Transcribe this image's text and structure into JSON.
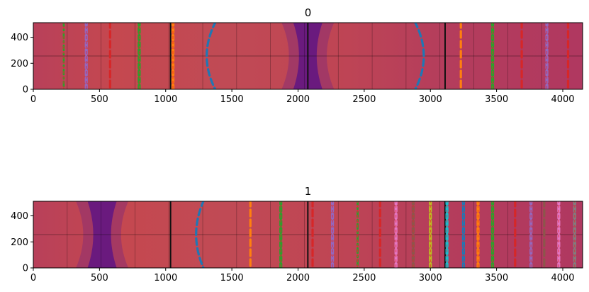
{
  "chart_data": [
    {
      "type": "heatmap",
      "title": "0",
      "xlabel": "",
      "ylabel": "",
      "xlim": [
        0,
        4150
      ],
      "ylim": [
        0,
        512
      ],
      "xticks": [
        0,
        500,
        1000,
        1500,
        2000,
        2500,
        3000,
        3500,
        4000
      ],
      "yticks": [
        0,
        200,
        400
      ],
      "grid_lines_x": [
        256,
        512,
        768,
        1024,
        1280,
        1536,
        1792,
        2048,
        2304,
        2560,
        2816,
        3072,
        3328,
        3584,
        3840
      ],
      "grid_lines_y": [
        256
      ],
      "black_lines_x": [
        1037,
        2074,
        3111
      ],
      "dark_band": {
        "x_center": 2074,
        "half_width_edge": 110,
        "half_width_center": 40
      },
      "curves": [
        {
          "x": 230,
          "color": "#2ca02c",
          "style": "dash-dot"
        },
        {
          "x": 400,
          "color": "#9467bd",
          "style": "chain"
        },
        {
          "x": 580,
          "color": "#d62728",
          "style": "dash"
        },
        {
          "x": 800,
          "color": "#2ca02c",
          "style": "chain"
        },
        {
          "x": 1055,
          "color": "#ff7f0e",
          "style": "chain"
        },
        {
          "x": 1380,
          "color": "#1f77b4",
          "style": "dash",
          "bulge": 70
        },
        {
          "x": 2880,
          "color": "#1f77b4",
          "style": "dash",
          "bulge": -70
        },
        {
          "x": 3230,
          "color": "#ff7f0e",
          "style": "dash"
        },
        {
          "x": 3470,
          "color": "#2ca02c",
          "style": "chain"
        },
        {
          "x": 3690,
          "color": "#d62728",
          "style": "dash"
        },
        {
          "x": 3880,
          "color": "#9467bd",
          "style": "chain"
        },
        {
          "x": 4040,
          "color": "#d62728",
          "style": "dash"
        }
      ]
    },
    {
      "type": "heatmap",
      "title": "1",
      "xlabel": "",
      "ylabel": "",
      "xlim": [
        0,
        4150
      ],
      "ylim": [
        0,
        512
      ],
      "xticks": [
        0,
        500,
        1000,
        1500,
        2000,
        2500,
        3000,
        3500,
        4000
      ],
      "yticks": [
        0,
        200,
        400
      ],
      "grid_lines_x": [
        256,
        512,
        768,
        1024,
        1280,
        1536,
        1792,
        2048,
        2304,
        2560,
        2816,
        3072,
        3328,
        3584,
        3840
      ],
      "grid_lines_y": [
        256
      ],
      "black_lines_x": [
        1037,
        2074,
        3111
      ],
      "dark_band": {
        "x_center": 520,
        "half_width_edge": 110,
        "half_width_center": 40
      },
      "curves": [
        {
          "x": 1290,
          "color": "#1f77b4",
          "style": "dash",
          "bulge": 60
        },
        {
          "x": 1640,
          "color": "#ff7f0e",
          "style": "dash"
        },
        {
          "x": 1870,
          "color": "#2ca02c",
          "style": "chain"
        },
        {
          "x": 2110,
          "color": "#d62728",
          "style": "dash"
        },
        {
          "x": 2260,
          "color": "#9467bd",
          "style": "chain"
        },
        {
          "x": 2450,
          "color": "#2ca02c",
          "style": "dash-dot"
        },
        {
          "x": 2620,
          "color": "#d62728",
          "style": "dash"
        },
        {
          "x": 2740,
          "color": "#e377c2",
          "style": "chain"
        },
        {
          "x": 2870,
          "color": "#8c564b",
          "style": "chain"
        },
        {
          "x": 3000,
          "color": "#bcbd22",
          "style": "chain"
        },
        {
          "x": 3125,
          "color": "#17becf",
          "style": "chain"
        },
        {
          "x": 3250,
          "color": "#1f77b4",
          "style": "chain"
        },
        {
          "x": 3360,
          "color": "#ff7f0e",
          "style": "chain"
        },
        {
          "x": 3470,
          "color": "#2ca02c",
          "style": "chain"
        },
        {
          "x": 3640,
          "color": "#d62728",
          "style": "dash"
        },
        {
          "x": 3760,
          "color": "#9467bd",
          "style": "chain"
        },
        {
          "x": 3860,
          "color": "#8c564b",
          "style": "dash"
        },
        {
          "x": 3970,
          "color": "#e377c2",
          "style": "chain"
        },
        {
          "x": 4090,
          "color": "#7f7f7f",
          "style": "chain"
        }
      ]
    }
  ]
}
